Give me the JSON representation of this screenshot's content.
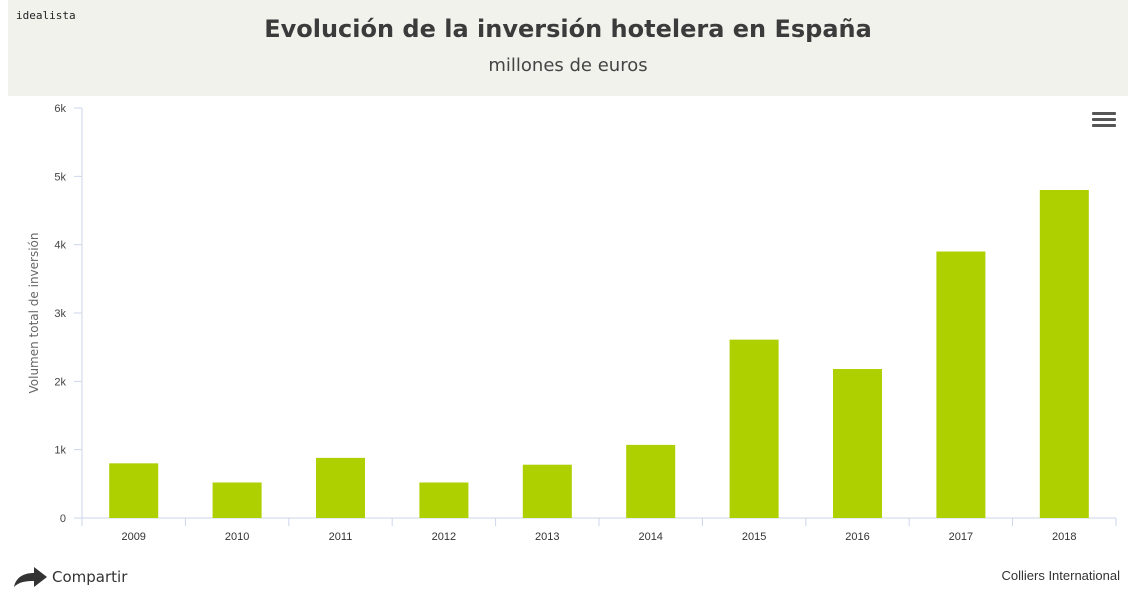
{
  "brand": "idealista",
  "colors": {
    "bar": "#aecf00",
    "axis": "#ccd6eb",
    "grid": "#e6e6e6",
    "header_bg": "#f2f2ed"
  },
  "menu": {
    "icon": "hamburger-menu-icon"
  },
  "share": {
    "icon": "share-arrow-icon",
    "label": "Compartir"
  },
  "credits": "Colliers International",
  "chart_data": {
    "type": "bar",
    "title": "Evolución de la inversión hotelera en España",
    "subtitle": "millones de euros",
    "xlabel": "",
    "ylabel": "Volumen total de inversión",
    "categories": [
      "2009",
      "2010",
      "2011",
      "2012",
      "2013",
      "2014",
      "2015",
      "2016",
      "2017",
      "2018"
    ],
    "values": [
      800,
      520,
      880,
      520,
      780,
      1070,
      2610,
      2180,
      3900,
      4800
    ],
    "ylim": [
      0,
      6000
    ],
    "yticks": [
      0,
      1000,
      2000,
      3000,
      4000,
      5000,
      6000
    ],
    "ytick_labels": [
      "0",
      "1k",
      "2k",
      "3k",
      "4k",
      "5k",
      "6k"
    ],
    "grid": false,
    "legend": "none"
  }
}
